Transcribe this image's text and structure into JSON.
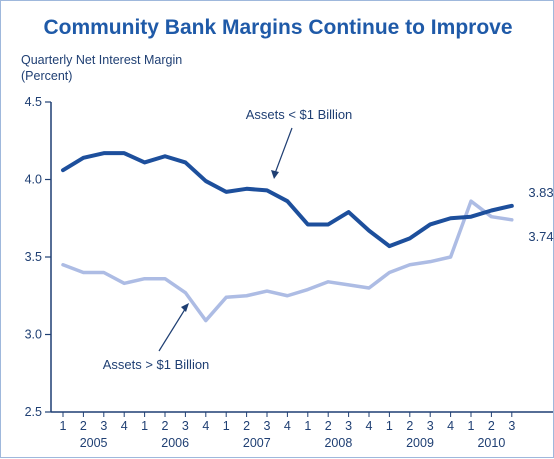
{
  "chart_data": {
    "type": "line",
    "title": "Community Bank Margins Continue to Improve",
    "ylabel_line1": "Quarterly Net Interest Margin",
    "ylabel_line2": "(Percent)",
    "ylim": [
      2.5,
      4.5
    ],
    "yticks": [
      "4.5",
      "4.0",
      "3.5",
      "3.0",
      "2.5"
    ],
    "ytick_values": [
      4.5,
      4.0,
      3.5,
      3.0,
      2.5
    ],
    "quarter_labels": [
      "1",
      "2",
      "3",
      "4",
      "1",
      "2",
      "3",
      "4",
      "1",
      "2",
      "3",
      "4",
      "1",
      "2",
      "3",
      "4",
      "1",
      "2",
      "3",
      "4",
      "1",
      "2",
      "3"
    ],
    "year_labels": [
      "2005",
      "2006",
      "2007",
      "2008",
      "2009",
      "2010"
    ],
    "series": [
      {
        "name": "Assets < $1 Billion",
        "color": "#1d4f9c",
        "values": [
          4.06,
          4.14,
          4.17,
          4.17,
          4.11,
          4.15,
          4.11,
          3.99,
          3.92,
          3.94,
          3.93,
          3.86,
          3.71,
          3.71,
          3.79,
          3.67,
          3.57,
          3.62,
          3.71,
          3.75,
          3.76,
          3.8,
          3.83
        ],
        "end_label": "3.83"
      },
      {
        "name": "Assets > $1 Billion",
        "color": "#adbce4",
        "values": [
          3.45,
          3.4,
          3.4,
          3.33,
          3.36,
          3.36,
          3.27,
          3.09,
          3.24,
          3.25,
          3.28,
          3.25,
          3.29,
          3.34,
          3.32,
          3.3,
          3.4,
          3.45,
          3.47,
          3.5,
          3.86,
          3.76,
          3.74
        ],
        "end_label": "3.74"
      }
    ]
  }
}
